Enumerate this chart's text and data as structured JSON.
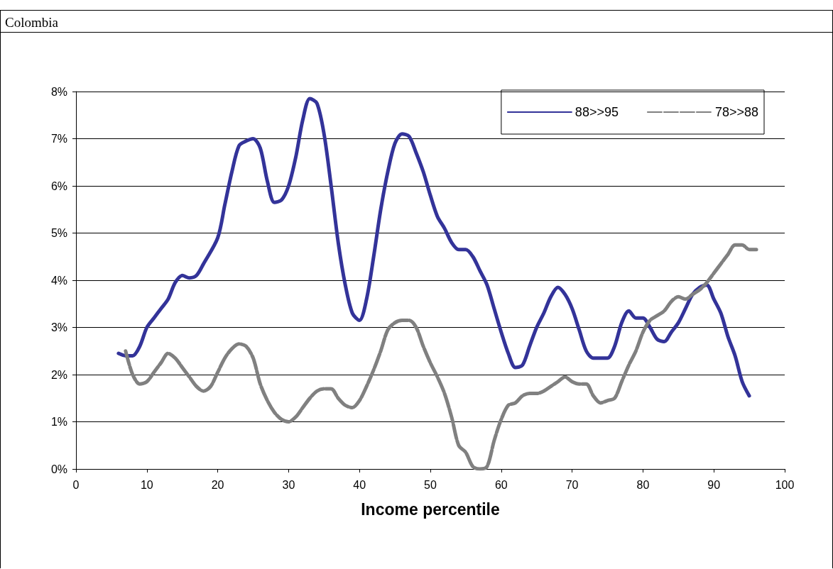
{
  "chart_data": {
    "type": "line",
    "title": "Colombia",
    "xlabel": "Income percentile",
    "xlim": [
      0,
      100
    ],
    "xticks": [
      0,
      10,
      20,
      30,
      40,
      50,
      60,
      70,
      80,
      90,
      100
    ],
    "ylim": [
      0,
      8
    ],
    "yticks": [
      {
        "value": 0,
        "label": "0%"
      },
      {
        "value": 1,
        "label": "1%"
      },
      {
        "value": 2,
        "label": "2%"
      },
      {
        "value": 3,
        "label": "3%"
      },
      {
        "value": 4,
        "label": "4%"
      },
      {
        "value": 5,
        "label": "5%"
      },
      {
        "value": 6,
        "label": "6%"
      },
      {
        "value": 7,
        "label": "7%"
      },
      {
        "value": 8,
        "label": "8%"
      }
    ],
    "grid": "y",
    "legend": "top right",
    "marker": "none",
    "series": [
      {
        "name": "88>>95",
        "color": "#333399",
        "line_style": "solid",
        "x": [
          6,
          7,
          8,
          9,
          10,
          11,
          12,
          13,
          14,
          15,
          16,
          17,
          18,
          20,
          21,
          22,
          23,
          24,
          25,
          26,
          27,
          28,
          29,
          30,
          31,
          32,
          33,
          34,
          35,
          36,
          37,
          38,
          39,
          40,
          41,
          42,
          43,
          44,
          45,
          46,
          47,
          48,
          49,
          50,
          51,
          52,
          53,
          54,
          55,
          56,
          57,
          58,
          59,
          60,
          61,
          62,
          63,
          64,
          65,
          66,
          67,
          68,
          69,
          70,
          71,
          72,
          73,
          74,
          75,
          76,
          77,
          78,
          79,
          80,
          81,
          82,
          83,
          84,
          85,
          86,
          87,
          88,
          89,
          90,
          91,
          92,
          93,
          94,
          95
        ],
        "values": [
          2.45,
          2.4,
          2.4,
          2.6,
          3.0,
          3.2,
          3.4,
          3.6,
          3.95,
          4.1,
          4.05,
          4.1,
          4.35,
          4.9,
          5.6,
          6.3,
          6.85,
          6.95,
          7.0,
          6.8,
          6.1,
          5.65,
          5.7,
          6.0,
          6.6,
          7.4,
          7.85,
          7.75,
          7.1,
          6.0,
          4.8,
          3.9,
          3.3,
          3.15,
          3.6,
          4.5,
          5.5,
          6.3,
          6.9,
          7.1,
          7.05,
          6.7,
          6.3,
          5.8,
          5.35,
          5.1,
          4.8,
          4.65,
          4.65,
          4.5,
          4.2,
          3.9,
          3.4,
          2.9,
          2.45,
          2.15,
          2.2,
          2.6,
          3.0,
          3.3,
          3.65,
          3.85,
          3.7,
          3.4,
          2.95,
          2.5,
          2.35,
          2.35,
          2.35,
          2.6,
          3.1,
          3.35,
          3.2,
          3.2,
          3.0,
          2.75,
          2.7,
          2.9,
          3.1,
          3.4,
          3.7,
          3.85,
          3.9,
          3.6,
          3.3,
          2.8,
          2.4,
          1.85,
          1.55
        ]
      },
      {
        "name": "78>>88",
        "color": "#808080",
        "line_style": "dashed",
        "x": [
          7,
          8,
          9,
          10,
          11,
          12,
          13,
          14,
          15,
          16,
          17,
          18,
          19,
          20,
          21,
          22,
          23,
          24,
          25,
          26,
          27,
          28,
          29,
          30,
          31,
          32,
          33,
          34,
          35,
          36,
          37,
          38,
          39,
          40,
          41,
          42,
          43,
          44,
          45,
          46,
          47,
          48,
          49,
          50,
          51,
          52,
          53,
          54,
          55,
          56,
          57,
          58,
          59,
          60,
          61,
          62,
          63,
          64,
          65,
          66,
          67,
          68,
          69,
          70,
          71,
          72,
          73,
          74,
          75,
          76,
          77,
          78,
          79,
          80,
          81,
          82,
          83,
          84,
          85,
          86,
          87,
          88,
          89,
          90,
          91,
          92,
          93,
          94,
          95,
          96
        ],
        "values": [
          2.5,
          2.0,
          1.8,
          1.85,
          2.05,
          2.25,
          2.45,
          2.35,
          2.15,
          1.95,
          1.75,
          1.65,
          1.75,
          2.05,
          2.35,
          2.55,
          2.65,
          2.6,
          2.35,
          1.8,
          1.45,
          1.2,
          1.05,
          1.0,
          1.1,
          1.3,
          1.5,
          1.65,
          1.7,
          1.7,
          1.5,
          1.35,
          1.3,
          1.45,
          1.75,
          2.1,
          2.5,
          2.95,
          3.1,
          3.15,
          3.15,
          3.0,
          2.6,
          2.25,
          1.95,
          1.6,
          1.1,
          0.5,
          0.35,
          0.05,
          0.0,
          0.05,
          0.6,
          1.05,
          1.35,
          1.4,
          1.55,
          1.6,
          1.6,
          1.65,
          1.75,
          1.85,
          1.95,
          1.85,
          1.8,
          1.8,
          1.55,
          1.4,
          1.45,
          1.5,
          1.85,
          2.2,
          2.5,
          2.9,
          3.15,
          3.25,
          3.35,
          3.55,
          3.65,
          3.6,
          3.7,
          3.8,
          3.95,
          4.15,
          4.35,
          4.55,
          4.75,
          4.75,
          4.65,
          4.65
        ]
      }
    ]
  }
}
